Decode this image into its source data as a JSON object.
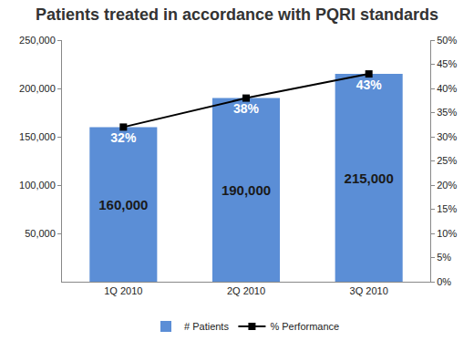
{
  "chart_data": {
    "type": "bar",
    "title": "Patients treated in accordance with PQRI standards",
    "categories": [
      "1Q 2010",
      "2Q 2010",
      "3Q 2010"
    ],
    "series": [
      {
        "name": "# Patients",
        "type": "bar",
        "color": "#5b8ed6",
        "values": [
          160000,
          190000,
          215000
        ],
        "value_labels": [
          "160,000",
          "190,000",
          "215,000"
        ]
      },
      {
        "name": "% Performance",
        "type": "line",
        "color": "#000000",
        "marker": "square",
        "axis": "y2",
        "values": [
          32,
          38,
          43
        ],
        "value_labels": [
          "32%",
          "38%",
          "43%"
        ]
      }
    ],
    "ylim": [
      0,
      250000
    ],
    "yticks": [
      {
        "value": 50000,
        "label": "50,000"
      },
      {
        "value": 100000,
        "label": "100,000"
      },
      {
        "value": 150000,
        "label": "150,000"
      },
      {
        "value": 200000,
        "label": "200,000"
      },
      {
        "value": 250000,
        "label": "250,000"
      }
    ],
    "y2lim": [
      0,
      50
    ],
    "y2ticks": [
      {
        "value": 0,
        "label": "0%"
      },
      {
        "value": 5,
        "label": "5%"
      },
      {
        "value": 10,
        "label": "10%"
      },
      {
        "value": 15,
        "label": "15%"
      },
      {
        "value": 20,
        "label": "20%"
      },
      {
        "value": 25,
        "label": "25%"
      },
      {
        "value": 30,
        "label": "30%"
      },
      {
        "value": 35,
        "label": "35%"
      },
      {
        "value": 40,
        "label": "40%"
      },
      {
        "value": 45,
        "label": "45%"
      },
      {
        "value": 50,
        "label": "50%"
      }
    ],
    "data_labels": true,
    "legend": "bottom",
    "grid": false
  }
}
